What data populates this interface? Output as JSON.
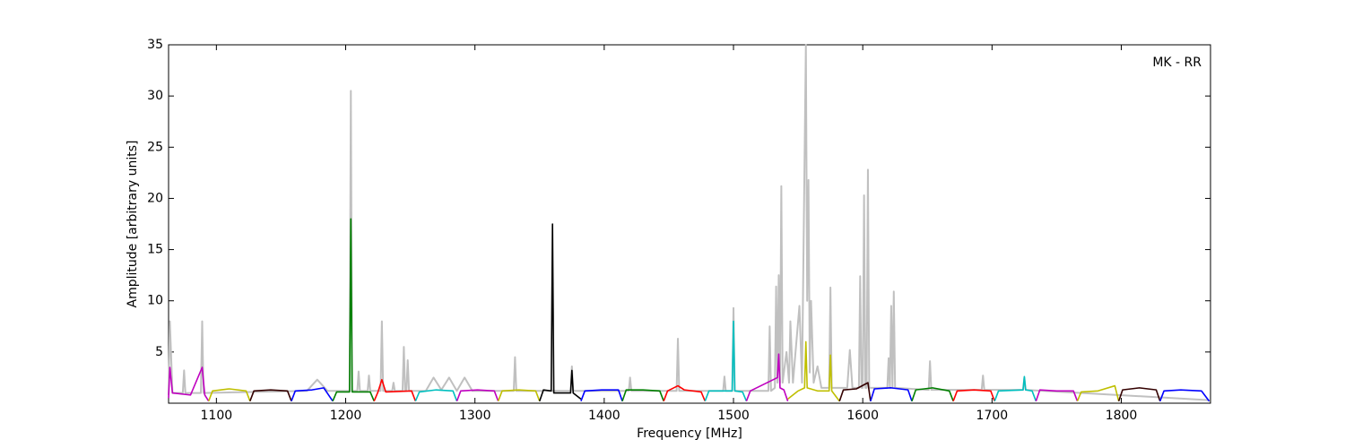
{
  "chart_data": {
    "type": "line",
    "x_label": "Frequency [MHz]",
    "y_label": "Amplitude [arbitrary units]",
    "annotation": "MK - RR",
    "xlim": [
      1063,
      1869
    ],
    "ylim": [
      0,
      35
    ],
    "xticks": [
      1100,
      1200,
      1300,
      1400,
      1500,
      1600,
      1700,
      1800
    ],
    "yticks": [
      5,
      10,
      15,
      20,
      25,
      30,
      35
    ],
    "series": [
      {
        "color": "#c0c0c0",
        "x": [
          1063,
          1064,
          1066,
          1074,
          1075,
          1076,
          1088,
          1089,
          1090,
          1170,
          1178,
          1186,
          1203,
          1204,
          1205,
          1209,
          1210,
          1211,
          1217,
          1218,
          1219,
          1227,
          1228,
          1229,
          1236,
          1237,
          1238,
          1244,
          1245,
          1246,
          1247,
          1248,
          1249,
          1262,
          1268,
          1274,
          1280,
          1286,
          1292,
          1298,
          1330,
          1331,
          1332,
          1374,
          1375,
          1376,
          1419,
          1420,
          1421,
          1456,
          1457,
          1458,
          1492,
          1493,
          1494,
          1499,
          1500,
          1501,
          1527,
          1528,
          1529,
          1532,
          1533,
          1534,
          1535,
          1536,
          1537,
          1538,
          1541,
          1543,
          1544,
          1546,
          1551,
          1553,
          1556,
          1557,
          1558,
          1559,
          1560,
          1562,
          1565,
          1568,
          1574,
          1575,
          1576,
          1588,
          1590,
          1592,
          1597,
          1598,
          1599,
          1600,
          1601,
          1602,
          1603,
          1604,
          1605,
          1619,
          1620,
          1621,
          1622,
          1623,
          1624,
          1625,
          1651,
          1652,
          1653,
          1692,
          1693,
          1694,
          1724,
          1725,
          1726,
          1868
        ],
        "values": [
          0.8,
          8,
          1.0,
          1.0,
          3.2,
          1.0,
          1.0,
          8,
          1.0,
          1.2,
          2.3,
          1.2,
          1.2,
          30.5,
          1.2,
          1.2,
          3.1,
          1.2,
          1.2,
          2.7,
          1.2,
          1.2,
          8,
          1.2,
          1.2,
          2,
          1.2,
          1.2,
          5.5,
          1.2,
          1.2,
          4.2,
          1.2,
          1.2,
          2.5,
          1.3,
          2.5,
          1.2,
          2.5,
          1.2,
          1.2,
          4.5,
          1.2,
          1.2,
          3.6,
          1.2,
          1.2,
          2.5,
          1.2,
          1.2,
          6.3,
          1.2,
          1.2,
          2.6,
          1.2,
          1.2,
          9.3,
          1.2,
          1.2,
          7.5,
          1.2,
          1.5,
          11.4,
          2,
          12.5,
          2,
          21.2,
          2,
          5,
          2,
          8,
          2,
          9.5,
          2,
          35,
          10,
          21.8,
          3,
          10,
          2,
          3.6,
          1.5,
          1.5,
          11.3,
          1.5,
          1.5,
          5.2,
          1.5,
          1.5,
          12.4,
          1.5,
          1.5,
          20.3,
          1.5,
          1.5,
          22.8,
          1.5,
          1.5,
          4.4,
          1.5,
          9.5,
          1.5,
          10.9,
          1.5,
          1.3,
          4.1,
          1.3,
          1.3,
          2.7,
          1.3,
          1.3,
          2.5,
          1.3,
          0.3
        ]
      },
      {
        "color": "#bf00bf",
        "x": [
          1063,
          1064,
          1066,
          1080,
          1089,
          1091,
          1094
        ],
        "values": [
          0.5,
          3.5,
          1.0,
          0.8,
          3.5,
          0.8,
          0.2
        ]
      },
      {
        "color": "#bfbf00",
        "x": [
          1094,
          1097,
          1110,
          1123,
          1126
        ],
        "values": [
          0.2,
          1.2,
          1.4,
          1.2,
          0.2
        ]
      },
      {
        "color": "#330000",
        "x": [
          1126,
          1129,
          1142,
          1155,
          1158
        ],
        "values": [
          0.2,
          1.2,
          1.3,
          1.2,
          0.2
        ]
      },
      {
        "color": "#0000ff",
        "x": [
          1158,
          1161,
          1174,
          1183,
          1190
        ],
        "values": [
          0.2,
          1.2,
          1.3,
          1.5,
          0.2
        ]
      },
      {
        "color": "#007f00",
        "x": [
          1190,
          1193,
          1203,
          1204,
          1205,
          1219,
          1222
        ],
        "values": [
          0.2,
          1.1,
          1.1,
          18,
          1.1,
          1.1,
          0.2
        ]
      },
      {
        "color": "#ff0000",
        "x": [
          1222,
          1225,
          1228,
          1231,
          1251,
          1254
        ],
        "values": [
          0.2,
          1.1,
          2.3,
          1.1,
          1.2,
          0.2
        ]
      },
      {
        "color": "#00bfbf",
        "x": [
          1254,
          1257,
          1270,
          1283,
          1286
        ],
        "values": [
          0.2,
          1.1,
          1.3,
          1.2,
          0.2
        ]
      },
      {
        "color": "#bf00bf",
        "x": [
          1286,
          1289,
          1302,
          1315,
          1318
        ],
        "values": [
          0.2,
          1.2,
          1.3,
          1.2,
          0.2
        ]
      },
      {
        "color": "#bfbf00",
        "x": [
          1318,
          1321,
          1334,
          1347,
          1350
        ],
        "values": [
          0.2,
          1.2,
          1.3,
          1.2,
          0.2
        ]
      },
      {
        "color": "#000000",
        "x": [
          1350,
          1353,
          1359,
          1360,
          1361,
          1374,
          1375,
          1376,
          1382
        ],
        "values": [
          0.2,
          1.3,
          1.2,
          17.5,
          1.0,
          1.0,
          3.2,
          1.0,
          0.4
        ]
      },
      {
        "color": "#0000ff",
        "x": [
          1382,
          1385,
          1398,
          1411,
          1414
        ],
        "values": [
          0.2,
          1.2,
          1.3,
          1.3,
          0.2
        ]
      },
      {
        "color": "#007f00",
        "x": [
          1414,
          1417,
          1430,
          1443,
          1446
        ],
        "values": [
          0.2,
          1.3,
          1.3,
          1.2,
          0.2
        ]
      },
      {
        "color": "#ff0000",
        "x": [
          1446,
          1449,
          1457,
          1462,
          1475,
          1478
        ],
        "values": [
          0.2,
          1.2,
          1.7,
          1.3,
          1.1,
          0.2
        ]
      },
      {
        "color": "#00bfbf",
        "x": [
          1478,
          1481,
          1499,
          1500,
          1501,
          1507,
          1510
        ],
        "values": [
          0.2,
          1.2,
          1.2,
          8,
          1.2,
          1.1,
          0.2
        ]
      },
      {
        "color": "#bf00bf",
        "x": [
          1510,
          1513,
          1534,
          1535,
          1536,
          1539,
          1542
        ],
        "values": [
          0.2,
          1.2,
          2.5,
          4.8,
          1.5,
          1.3,
          0.2
        ]
      },
      {
        "color": "#bfbf00",
        "x": [
          1542,
          1550,
          1555,
          1556,
          1557,
          1565,
          1574,
          1575,
          1576,
          1582
        ],
        "values": [
          0.4,
          1.2,
          1.5,
          6,
          1.5,
          1.2,
          1.2,
          4.7,
          1.2,
          0.2
        ]
      },
      {
        "color": "#330000",
        "x": [
          1582,
          1585,
          1595,
          1604,
          1606
        ],
        "values": [
          0.2,
          1.3,
          1.4,
          2,
          0.2
        ]
      },
      {
        "color": "#0000ff",
        "x": [
          1606,
          1609,
          1622,
          1635,
          1638
        ],
        "values": [
          0.2,
          1.4,
          1.5,
          1.3,
          0.2
        ]
      },
      {
        "color": "#007f00",
        "x": [
          1638,
          1641,
          1654,
          1667,
          1670
        ],
        "values": [
          0.2,
          1.3,
          1.5,
          1.2,
          0.2
        ]
      },
      {
        "color": "#ff0000",
        "x": [
          1670,
          1673,
          1686,
          1699,
          1702
        ],
        "values": [
          0.2,
          1.2,
          1.3,
          1.2,
          0.2
        ]
      },
      {
        "color": "#00bfbf",
        "x": [
          1702,
          1705,
          1724,
          1725,
          1726,
          1731,
          1734
        ],
        "values": [
          0.2,
          1.2,
          1.3,
          2.6,
          1.3,
          1.2,
          0.2
        ]
      },
      {
        "color": "#bf00bf",
        "x": [
          1734,
          1737,
          1750,
          1763,
          1766
        ],
        "values": [
          0.2,
          1.3,
          1.2,
          1.2,
          0.2
        ]
      },
      {
        "color": "#bfbf00",
        "x": [
          1766,
          1769,
          1782,
          1795,
          1798
        ],
        "values": [
          0.2,
          1.1,
          1.2,
          1.7,
          0.2
        ]
      },
      {
        "color": "#330000",
        "x": [
          1798,
          1801,
          1814,
          1827,
          1830
        ],
        "values": [
          0.2,
          1.3,
          1.5,
          1.3,
          0.2
        ]
      },
      {
        "color": "#0000ff",
        "x": [
          1830,
          1833,
          1846,
          1862,
          1868
        ],
        "values": [
          0.2,
          1.2,
          1.3,
          1.2,
          0.2
        ]
      }
    ]
  }
}
